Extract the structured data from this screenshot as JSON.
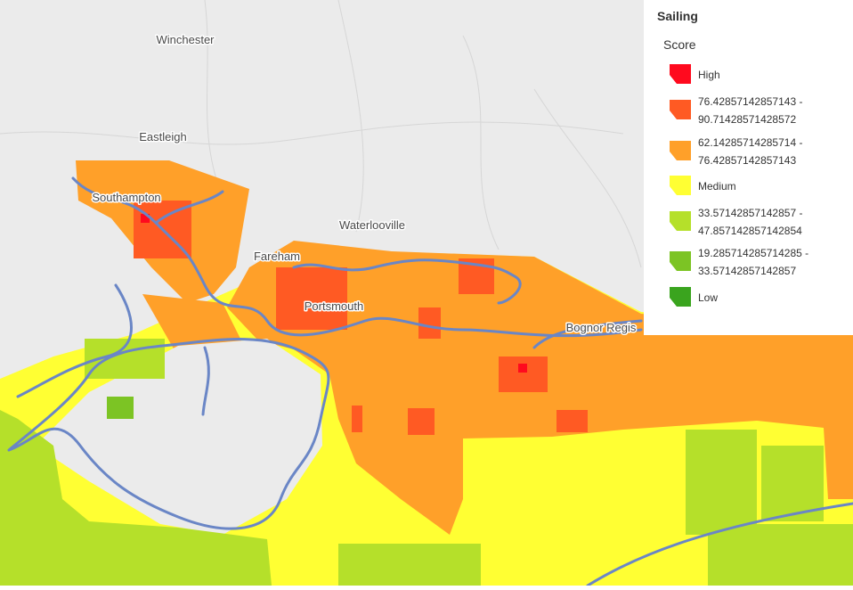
{
  "map": {
    "places": [
      "Winchester",
      "Eastleigh",
      "Southampton",
      "Waterlooville",
      "Fareham",
      "Portsmouth",
      "Bognor Regis"
    ]
  },
  "legend": {
    "title": "Sailing",
    "field": "Score",
    "items": [
      {
        "label": [
          "High"
        ],
        "color": "#ff0a1e"
      },
      {
        "label": [
          "76.42857142857143 -",
          "90.71428571428572"
        ],
        "color": "#ff5a23"
      },
      {
        "label": [
          "62.14285714285714 -",
          "76.42857142857143"
        ],
        "color": "#ffa029"
      },
      {
        "label": [
          "Medium"
        ],
        "color": "#ffff33"
      },
      {
        "label": [
          "33.57142857142857 -",
          "47.857142857142854"
        ],
        "color": "#b5e02a"
      },
      {
        "label": [
          "19.285714285714285 -",
          "33.57142857142857"
        ],
        "color": "#7cc424"
      },
      {
        "label": [
          "Low"
        ],
        "color": "#3aa41e"
      }
    ]
  }
}
